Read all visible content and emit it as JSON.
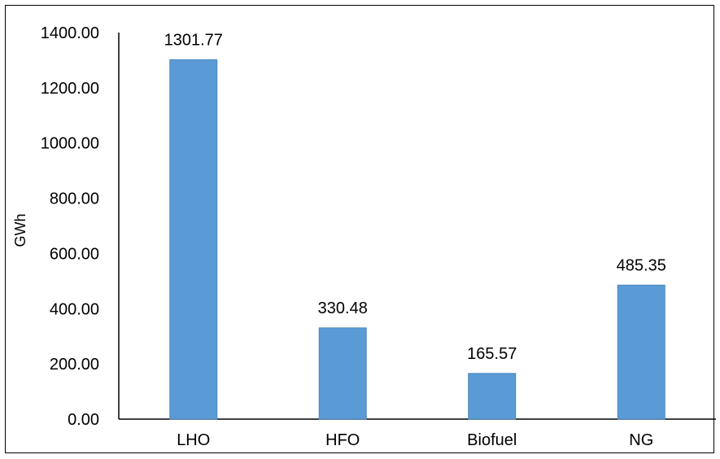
{
  "chart_data": {
    "type": "bar",
    "title": "",
    "xlabel": "",
    "ylabel": "GWh",
    "categories": [
      "LHO",
      "HFO",
      "Biofuel",
      "NG"
    ],
    "values": [
      1301.77,
      330.48,
      165.57,
      485.35
    ],
    "data_labels": [
      "1301.77",
      "330.48",
      "165.57",
      "485.35"
    ],
    "ylim": [
      0,
      1400
    ],
    "yticks": [
      0,
      200,
      400,
      600,
      800,
      1000,
      1200,
      1400
    ],
    "ytick_labels": [
      "0.00",
      "200.00",
      "400.00",
      "600.00",
      "800.00",
      "1000.00",
      "1200.00",
      "1400.00"
    ],
    "grid": false,
    "legend": "none",
    "bar_color": "#5b9bd5",
    "bar_edge_color": "#4a88c2"
  }
}
